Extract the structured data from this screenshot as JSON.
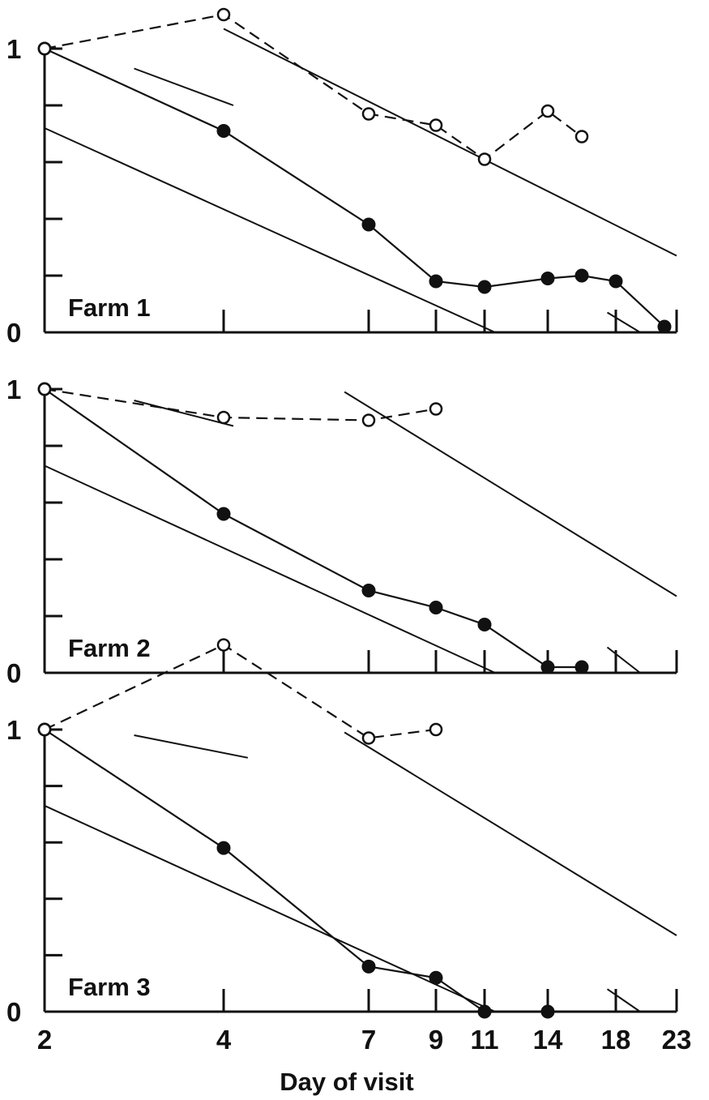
{
  "chart_data": {
    "type": "line",
    "xlabel": "Day of visit",
    "x_ticks": [
      "2",
      "4",
      "7",
      "9",
      "11",
      "14",
      "18",
      "23"
    ],
    "x_tick_positions": [
      2,
      4,
      7,
      9,
      11,
      14,
      18,
      23
    ],
    "y_tick_labels": {
      "min": "0",
      "max": "1"
    },
    "ylim": [
      0,
      1
    ],
    "y_ticks": [
      0,
      0.2,
      0.4,
      0.6,
      0.8,
      1
    ],
    "panels": [
      {
        "title": "Farm 1",
        "series": [
          {
            "style": "solid-filled",
            "x": [
              2,
              4,
              7,
              9,
              11,
              14,
              16,
              18,
              22
            ],
            "y": [
              1.0,
              0.71,
              0.38,
              0.18,
              0.16,
              0.19,
              0.2,
              0.18,
              0.02
            ]
          },
          {
            "style": "dashed-open",
            "x": [
              2,
              4,
              7,
              9,
              11,
              14,
              16
            ],
            "y": [
              1.0,
              1.12,
              0.77,
              0.73,
              0.61,
              0.78,
              0.69
            ]
          }
        ],
        "reference_lines": [
          {
            "x": [
              2,
              11.5
            ],
            "y": [
              0.72,
              0.0
            ]
          },
          {
            "x": [
              4,
              23
            ],
            "y": [
              1.07,
              0.27
            ]
          },
          {
            "x": [
              3,
              4.2
            ],
            "y": [
              0.93,
              0.8
            ]
          },
          {
            "x": [
              17.5,
              20
            ],
            "y": [
              0.07,
              0.0
            ]
          }
        ]
      },
      {
        "title": "Farm 2",
        "series": [
          {
            "style": "solid-filled",
            "x": [
              2,
              4,
              7,
              9,
              11,
              14,
              16
            ],
            "y": [
              1.0,
              0.56,
              0.29,
              0.23,
              0.17,
              0.02,
              0.02
            ]
          },
          {
            "style": "dashed-open",
            "x": [
              2,
              4,
              7,
              9
            ],
            "y": [
              1.0,
              0.9,
              0.89,
              0.93
            ]
          }
        ],
        "reference_lines": [
          {
            "x": [
              2,
              11.5
            ],
            "y": [
              0.73,
              0.0
            ]
          },
          {
            "x": [
              6.5,
              23
            ],
            "y": [
              0.99,
              0.27
            ]
          },
          {
            "x": [
              3,
              4.2
            ],
            "y": [
              0.96,
              0.87
            ]
          },
          {
            "x": [
              17.5,
              20
            ],
            "y": [
              0.09,
              0.0
            ]
          }
        ]
      },
      {
        "title": "Farm 3",
        "series": [
          {
            "style": "solid-filled",
            "x": [
              2,
              4,
              7,
              9,
              11,
              14
            ],
            "y": [
              1.0,
              0.58,
              0.16,
              0.12,
              0.0,
              0.0
            ]
          },
          {
            "style": "dashed-open",
            "x": [
              2,
              4,
              7,
              9
            ],
            "y": [
              1.0,
              1.3,
              0.97,
              1.0
            ]
          }
        ],
        "reference_lines": [
          {
            "x": [
              2,
              11.5
            ],
            "y": [
              0.73,
              0.0
            ]
          },
          {
            "x": [
              6.5,
              23
            ],
            "y": [
              0.99,
              0.27
            ]
          },
          {
            "x": [
              3,
              4.5
            ],
            "y": [
              0.98,
              0.9
            ]
          },
          {
            "x": [
              17.5,
              20
            ],
            "y": [
              0.08,
              0.0
            ]
          }
        ]
      }
    ]
  }
}
